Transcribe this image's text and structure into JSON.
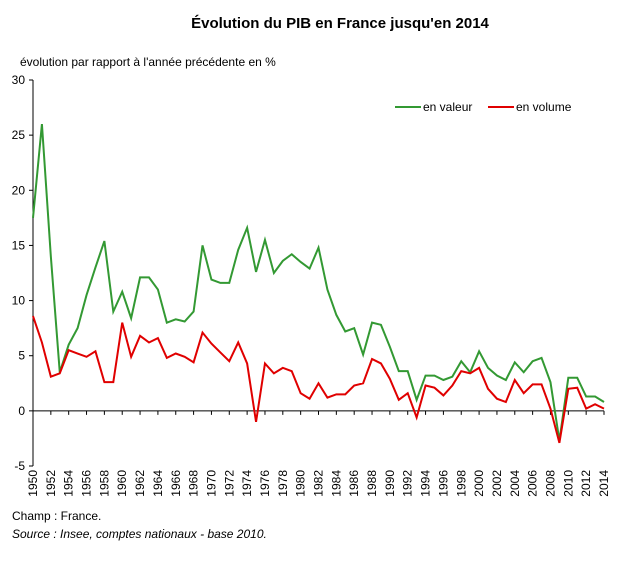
{
  "chart_data": {
    "type": "line",
    "title": "Évolution du PIB en France jusqu'en 2014",
    "y_label": "évolution par rapport à l'année précédente en %",
    "notes": [
      "Champ : France.",
      "Source : Insee, comptes nationaux - base 2010."
    ],
    "x": [
      1950,
      1951,
      1952,
      1953,
      1954,
      1955,
      1956,
      1957,
      1958,
      1959,
      1960,
      1961,
      1962,
      1963,
      1964,
      1965,
      1966,
      1967,
      1968,
      1969,
      1970,
      1971,
      1972,
      1973,
      1974,
      1975,
      1976,
      1977,
      1978,
      1979,
      1980,
      1981,
      1982,
      1983,
      1984,
      1985,
      1986,
      1987,
      1988,
      1989,
      1990,
      1991,
      1992,
      1993,
      1994,
      1995,
      1996,
      1997,
      1998,
      1999,
      2000,
      2001,
      2002,
      2003,
      2004,
      2005,
      2006,
      2007,
      2008,
      2009,
      2010,
      2011,
      2012,
      2013,
      2014
    ],
    "series": [
      {
        "name": "en valeur",
        "color": "#339933",
        "values": [
          17.5,
          26,
          14,
          3.5,
          6,
          7.5,
          10.5,
          13,
          15.4,
          9,
          10.8,
          8.4,
          12.1,
          12.1,
          11,
          8,
          8.3,
          8.1,
          9,
          15,
          11.9,
          11.6,
          11.6,
          14.6,
          16.6,
          12.6,
          15.5,
          12.5,
          13.6,
          14.2,
          13.5,
          12.9,
          14.8,
          11,
          8.7,
          7.2,
          7.5,
          5.1,
          8,
          7.8,
          5.8,
          3.6,
          3.6,
          1,
          3.2,
          3.2,
          2.8,
          3.1,
          4.5,
          3.5,
          5.4,
          3.9,
          3.2,
          2.8,
          4.4,
          3.5,
          4.5,
          4.8,
          2.6,
          -2.7,
          3,
          3,
          1.3,
          1.3,
          0.8
        ]
      },
      {
        "name": "en volume",
        "color": "#e00000",
        "values": [
          8.6,
          6.2,
          3.1,
          3.4,
          5.5,
          5.2,
          4.9,
          5.4,
          2.6,
          2.6,
          8,
          4.9,
          6.8,
          6.2,
          6.6,
          4.8,
          5.2,
          4.9,
          4.4,
          7.1,
          6.1,
          5.3,
          4.5,
          6.2,
          4.3,
          -1,
          4.3,
          3.4,
          3.9,
          3.6,
          1.6,
          1.1,
          2.5,
          1.2,
          1.5,
          1.5,
          2.3,
          2.5,
          4.7,
          4.3,
          2.9,
          1,
          1.6,
          -0.6,
          2.3,
          2.1,
          1.4,
          2.3,
          3.6,
          3.4,
          3.9,
          2,
          1.1,
          0.8,
          2.8,
          1.6,
          2.4,
          2.4,
          0.2,
          -2.9,
          2,
          2.1,
          0.2,
          0.6,
          0.2
        ]
      }
    ],
    "xlim": [
      1950,
      2014
    ],
    "xticks": [
      1950,
      1952,
      1954,
      1956,
      1958,
      1960,
      1962,
      1964,
      1966,
      1968,
      1970,
      1972,
      1974,
      1976,
      1978,
      1980,
      1982,
      1984,
      1986,
      1988,
      1990,
      1992,
      1994,
      1996,
      1998,
      2000,
      2002,
      2004,
      2006,
      2008,
      2010,
      2012,
      2014
    ],
    "ylim": [
      -5,
      30
    ],
    "yticks": [
      -5,
      0,
      5,
      10,
      15,
      20,
      25,
      30
    ],
    "legend": "top-right"
  }
}
